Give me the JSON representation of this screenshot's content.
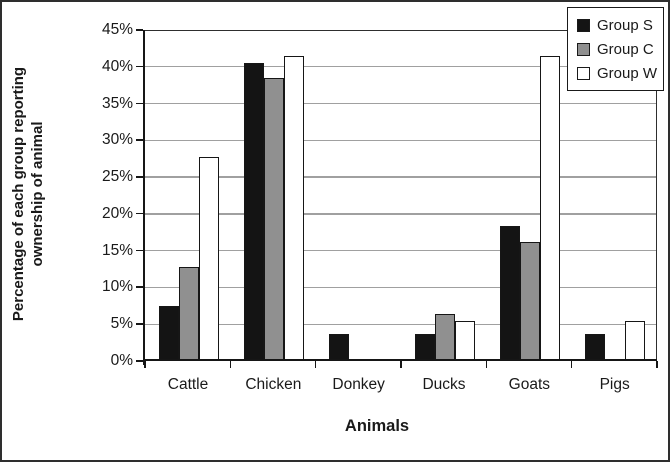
{
  "figure": {
    "background": "#ffffff",
    "border_color": "#2e2e2e"
  },
  "chart_data": {
    "type": "bar",
    "title": "",
    "xlabel": "Animals",
    "ylabel": "Percentage of each group reporting ownership of animal",
    "ylabel_lines": [
      "Percentage of each group reporting",
      "ownership of animal"
    ],
    "categories": [
      "Cattle",
      "Chicken",
      "Donkey",
      "Ducks",
      "Goats",
      "Pigs"
    ],
    "series": [
      {
        "name": "Group S",
        "color": "#141414",
        "values": [
          7.5,
          40.5,
          3.7,
          3.7,
          18.4,
          3.7
        ]
      },
      {
        "name": "Group C",
        "color": "#909090",
        "values": [
          12.8,
          38.5,
          0,
          6.4,
          16.2,
          0
        ]
      },
      {
        "name": "Group W",
        "color": "#ffffff",
        "values": [
          27.7,
          41.5,
          0,
          5.5,
          41.5,
          5.5
        ]
      }
    ],
    "ylim": [
      0,
      45
    ],
    "ytick_step": 5,
    "ytick_labels": [
      "0%",
      "5%",
      "10%",
      "15%",
      "20%",
      "25%",
      "30%",
      "35%",
      "40%",
      "45%"
    ],
    "grid": true,
    "gridline_color": "#a0a0a0",
    "bar_border_color": "#161616",
    "legend_position": "top-right"
  }
}
